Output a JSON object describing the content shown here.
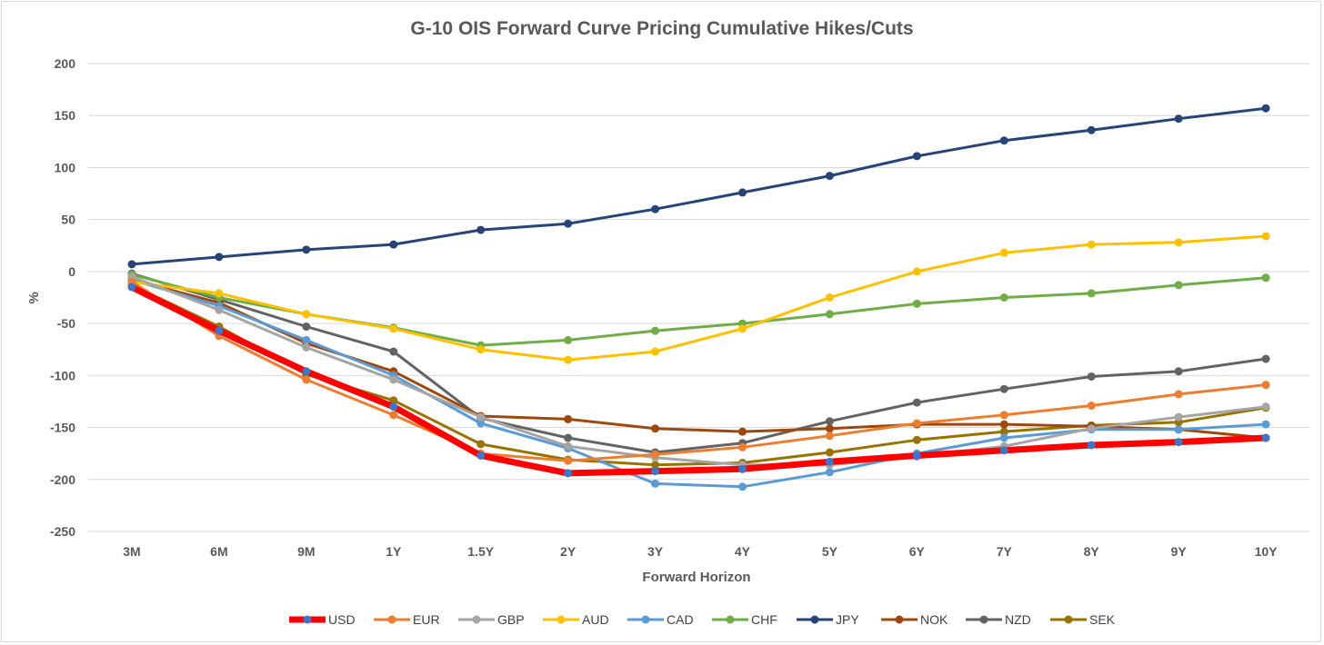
{
  "chart_data": {
    "type": "line",
    "title": "G-10 OIS Forward Curve Pricing Cumulative Hikes/Cuts",
    "xlabel": "Forward Horizon",
    "ylabel": "%",
    "ylim": [
      -250,
      200
    ],
    "yticks": [
      200,
      150,
      100,
      50,
      0,
      -50,
      -100,
      -150,
      -200,
      -250
    ],
    "categories": [
      "3M",
      "6M",
      "9M",
      "1Y",
      "1.5Y",
      "2Y",
      "3Y",
      "4Y",
      "5Y",
      "6Y",
      "7Y",
      "8Y",
      "9Y",
      "10Y"
    ],
    "grid": "horizontal",
    "legend_position": "bottom",
    "series": [
      {
        "name": "USD",
        "color": "#ff0000",
        "marker": "#4472c4",
        "values": [
          -15,
          -57,
          -96,
          -130,
          -177,
          -194,
          -192,
          -190,
          -183,
          -177,
          -172,
          -167,
          -164,
          -160
        ]
      },
      {
        "name": "EUR",
        "color": "#ed7d31",
        "values": [
          -10,
          -62,
          -104,
          -138,
          -175,
          -182,
          -176,
          -169,
          -158,
          -146,
          -138,
          -129,
          -118,
          -109
        ]
      },
      {
        "name": "GBP",
        "color": "#a5a5a5",
        "values": [
          -5,
          -37,
          -73,
          -104,
          -140,
          -168,
          -179,
          -186,
          -186,
          -178,
          -168,
          -151,
          -140,
          -130
        ]
      },
      {
        "name": "AUD",
        "color": "#ffc000",
        "values": [
          -10,
          -21,
          -41,
          -55,
          -75,
          -85,
          -77,
          -55,
          -25,
          0,
          18,
          26,
          28,
          34
        ]
      },
      {
        "name": "CAD",
        "color": "#5b9bd5",
        "values": [
          -8,
          -33,
          -66,
          -100,
          -146,
          -170,
          -204,
          -207,
          -193,
          -175,
          -160,
          -152,
          -152,
          -147
        ]
      },
      {
        "name": "CHF",
        "color": "#70ad47",
        "values": [
          -3,
          -25,
          -41,
          -54,
          -71,
          -66,
          -57,
          -50,
          -41,
          -31,
          -25,
          -21,
          -13,
          -6
        ]
      },
      {
        "name": "JPY",
        "color": "#264478",
        "values": [
          7,
          14,
          21,
          26,
          40,
          46,
          60,
          76,
          92,
          111,
          126,
          136,
          147,
          157
        ]
      },
      {
        "name": "NOK",
        "color": "#9e480e",
        "values": [
          -8,
          -30,
          -69,
          -96,
          -139,
          -142,
          -151,
          -154,
          -151,
          -147,
          -147,
          -149,
          -152,
          -160
        ]
      },
      {
        "name": "NZD",
        "color": "#636363",
        "values": [
          -2,
          -27,
          -53,
          -77,
          -141,
          -160,
          -174,
          -165,
          -144,
          -126,
          -113,
          -101,
          -96,
          -84
        ]
      },
      {
        "name": "SEK",
        "color": "#997300",
        "values": [
          -13,
          -53,
          -99,
          -124,
          -166,
          -181,
          -186,
          -184,
          -174,
          -162,
          -154,
          -148,
          -145,
          -131
        ]
      }
    ]
  }
}
